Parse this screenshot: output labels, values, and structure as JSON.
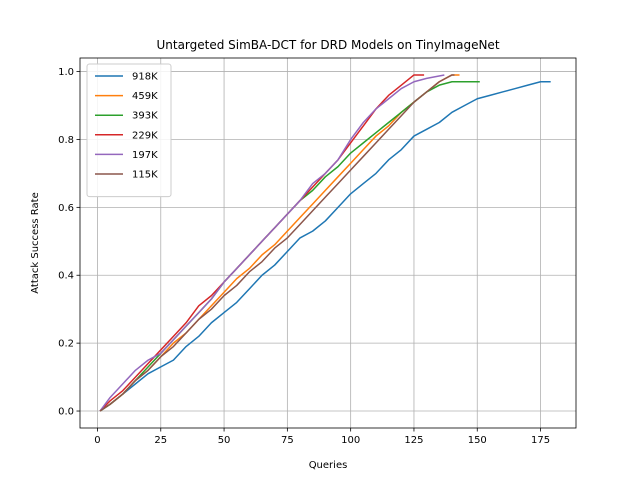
{
  "chart_data": {
    "type": "line",
    "title": "Untargeted SimBA-DCT for DRD Models on TinyImageNet",
    "xlabel": "Queries",
    "ylabel": "Attack Success Rate",
    "xlim": [
      -6.9,
      189.0
    ],
    "ylim": [
      -0.05,
      1.04
    ],
    "xticks": [
      0,
      25,
      50,
      75,
      100,
      125,
      150,
      175
    ],
    "yticks": [
      0.0,
      0.2,
      0.4,
      0.6,
      0.8,
      1.0
    ],
    "xtick_labels": [
      "0",
      "25",
      "50",
      "75",
      "100",
      "125",
      "150",
      "175"
    ],
    "ytick_labels": [
      "0.0",
      "0.2",
      "0.4",
      "0.6",
      "0.8",
      "1.0"
    ],
    "grid": true,
    "legend_position": "upper-left",
    "series": [
      {
        "name": "918K",
        "color": "#1f77b4",
        "x": [
          1,
          5,
          10,
          15,
          20,
          25,
          30,
          35,
          40,
          45,
          50,
          55,
          60,
          65,
          70,
          75,
          80,
          85,
          90,
          95,
          100,
          105,
          110,
          115,
          120,
          125,
          130,
          135,
          140,
          145,
          150,
          155,
          160,
          165,
          170,
          175,
          179
        ],
        "y": [
          0.0,
          0.02,
          0.05,
          0.08,
          0.11,
          0.13,
          0.15,
          0.19,
          0.22,
          0.26,
          0.29,
          0.32,
          0.36,
          0.4,
          0.43,
          0.47,
          0.51,
          0.53,
          0.56,
          0.6,
          0.64,
          0.67,
          0.7,
          0.74,
          0.77,
          0.81,
          0.83,
          0.85,
          0.88,
          0.9,
          0.92,
          0.93,
          0.94,
          0.95,
          0.96,
          0.97,
          0.97
        ]
      },
      {
        "name": "459K",
        "color": "#ff7f0e",
        "x": [
          1,
          5,
          10,
          15,
          20,
          25,
          30,
          35,
          40,
          45,
          50,
          55,
          60,
          65,
          70,
          75,
          80,
          85,
          90,
          95,
          100,
          105,
          110,
          115,
          120,
          125,
          130,
          135,
          140,
          143
        ],
        "y": [
          0.0,
          0.02,
          0.05,
          0.09,
          0.12,
          0.16,
          0.2,
          0.23,
          0.27,
          0.31,
          0.35,
          0.39,
          0.42,
          0.46,
          0.49,
          0.53,
          0.57,
          0.61,
          0.65,
          0.69,
          0.73,
          0.77,
          0.81,
          0.84,
          0.88,
          0.91,
          0.94,
          0.97,
          0.99,
          0.99
        ]
      },
      {
        "name": "393K",
        "color": "#2ca02c",
        "x": [
          1,
          5,
          10,
          15,
          20,
          25,
          30,
          35,
          40,
          45,
          50,
          55,
          60,
          65,
          70,
          75,
          80,
          85,
          90,
          95,
          100,
          105,
          110,
          115,
          120,
          125,
          130,
          135,
          140,
          145,
          151
        ],
        "y": [
          0.0,
          0.02,
          0.05,
          0.09,
          0.13,
          0.17,
          0.21,
          0.25,
          0.29,
          0.33,
          0.38,
          0.42,
          0.46,
          0.5,
          0.54,
          0.58,
          0.62,
          0.65,
          0.69,
          0.72,
          0.76,
          0.79,
          0.82,
          0.85,
          0.88,
          0.91,
          0.94,
          0.96,
          0.97,
          0.97,
          0.97
        ]
      },
      {
        "name": "229K",
        "color": "#d62728",
        "x": [
          1,
          5,
          10,
          15,
          20,
          25,
          30,
          35,
          40,
          45,
          50,
          55,
          60,
          65,
          70,
          75,
          80,
          85,
          90,
          95,
          100,
          105,
          110,
          115,
          120,
          125,
          129
        ],
        "y": [
          0.0,
          0.03,
          0.06,
          0.1,
          0.14,
          0.18,
          0.22,
          0.26,
          0.31,
          0.34,
          0.38,
          0.42,
          0.46,
          0.5,
          0.54,
          0.58,
          0.62,
          0.66,
          0.7,
          0.74,
          0.79,
          0.84,
          0.89,
          0.93,
          0.96,
          0.99,
          0.99
        ]
      },
      {
        "name": "197K",
        "color": "#9467bd",
        "x": [
          1,
          5,
          10,
          15,
          20,
          25,
          30,
          35,
          40,
          45,
          50,
          55,
          60,
          65,
          70,
          75,
          80,
          85,
          90,
          95,
          100,
          105,
          110,
          115,
          120,
          125,
          130,
          137
        ],
        "y": [
          0.0,
          0.04,
          0.08,
          0.12,
          0.15,
          0.17,
          0.21,
          0.25,
          0.29,
          0.33,
          0.38,
          0.42,
          0.46,
          0.5,
          0.54,
          0.58,
          0.62,
          0.67,
          0.7,
          0.74,
          0.8,
          0.85,
          0.89,
          0.92,
          0.95,
          0.97,
          0.98,
          0.99
        ]
      },
      {
        "name": "115K",
        "color": "#8c564b",
        "x": [
          1,
          5,
          10,
          15,
          20,
          25,
          30,
          35,
          40,
          45,
          50,
          55,
          60,
          65,
          70,
          75,
          80,
          85,
          90,
          95,
          100,
          105,
          110,
          115,
          120,
          125,
          130,
          135,
          140,
          141
        ],
        "y": [
          0.0,
          0.02,
          0.05,
          0.09,
          0.12,
          0.16,
          0.19,
          0.23,
          0.27,
          0.3,
          0.34,
          0.37,
          0.41,
          0.44,
          0.48,
          0.51,
          0.55,
          0.59,
          0.63,
          0.67,
          0.71,
          0.75,
          0.79,
          0.83,
          0.87,
          0.91,
          0.94,
          0.97,
          0.99,
          0.99
        ]
      }
    ]
  }
}
